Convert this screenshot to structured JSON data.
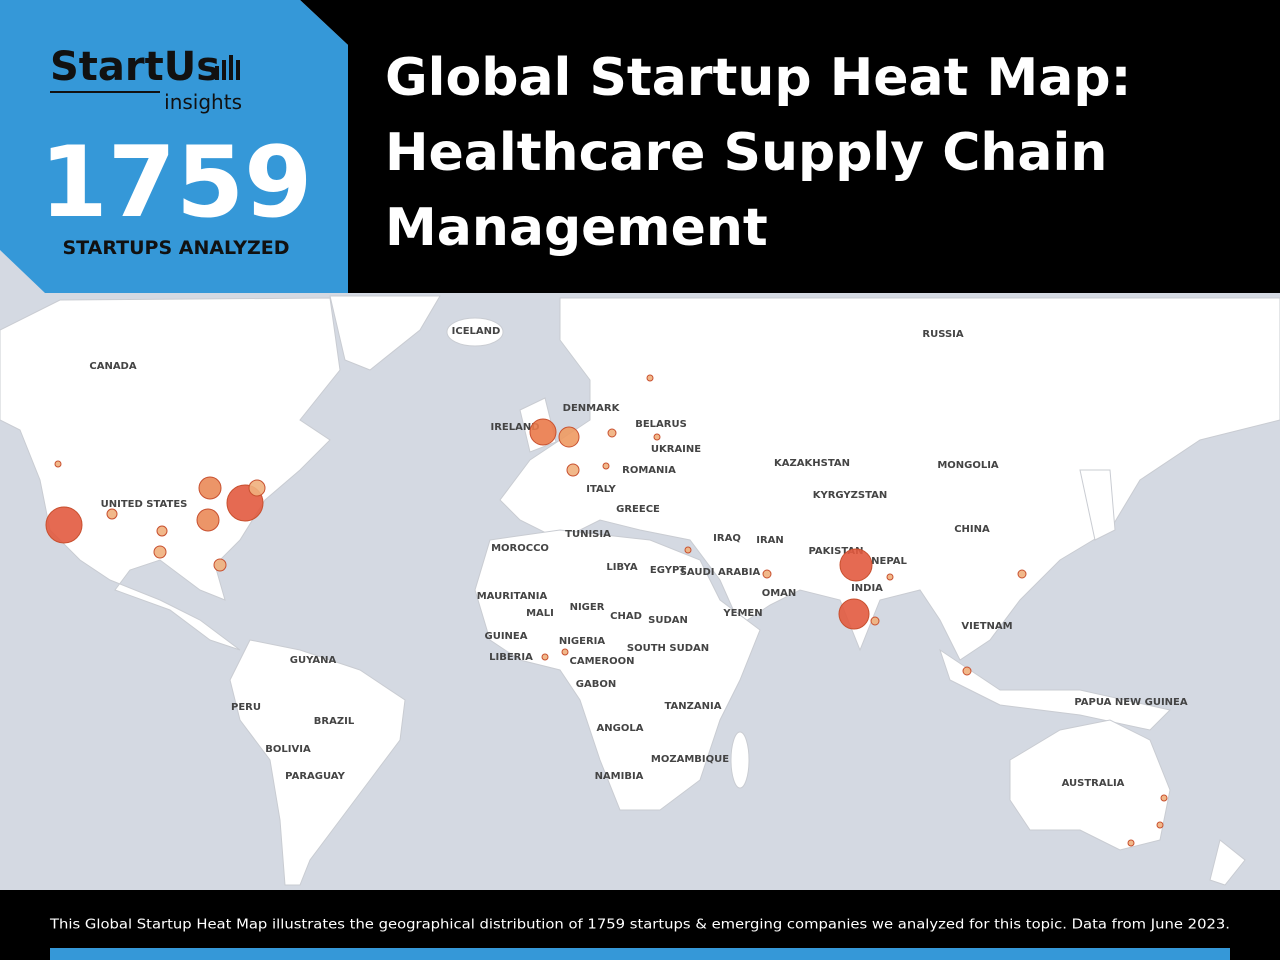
{
  "header": {
    "brand": "StartUs",
    "brand_sub": "insights",
    "count": "1759",
    "count_label": "STARTUPS ANALYZED",
    "title_lines": [
      "Global Startup Heat Map:",
      "Healthcare Supply Chain",
      "Management"
    ]
  },
  "map": {
    "labels": [
      "ICELAND",
      "RUSSIA",
      "CANADA",
      "DENMARK",
      "BELARUS",
      "IRELAND",
      "UKRAINE",
      "ROMANIA",
      "ITALY",
      "GREECE",
      "KAZAKHSTAN",
      "MONGOLIA",
      "KYRGYZSTAN",
      "UNITED STATES",
      "CHINA",
      "TUNISIA",
      "MOROCCO",
      "IRAQ",
      "IRAN",
      "PAKISTAN",
      "NEPAL",
      "LIBYA",
      "EGYPT",
      "SAUDI ARABIA",
      "INDIA",
      "OMAN",
      "MAURITANIA",
      "MALI",
      "NIGER",
      "CHAD",
      "SUDAN",
      "YEMEN",
      "VIETNAM",
      "GUINEA",
      "NIGERIA",
      "SOUTH SUDAN",
      "LIBERIA",
      "CAMEROON",
      "GUYANA",
      "GABON",
      "PAPUA NEW GUINEA",
      "PERU",
      "BRAZIL",
      "TANZANIA",
      "ANGOLA",
      "BOLIVIA",
      "MOZAMBIQUE",
      "NAMIBIA",
      "PARAGUAY",
      "AUSTRALIA"
    ]
  },
  "footer": {
    "text": "This Global Startup Heat Map illustrates the geographical distribution of 1759 startups & emerging companies we analyzed for this topic. Data from June 2023."
  }
}
